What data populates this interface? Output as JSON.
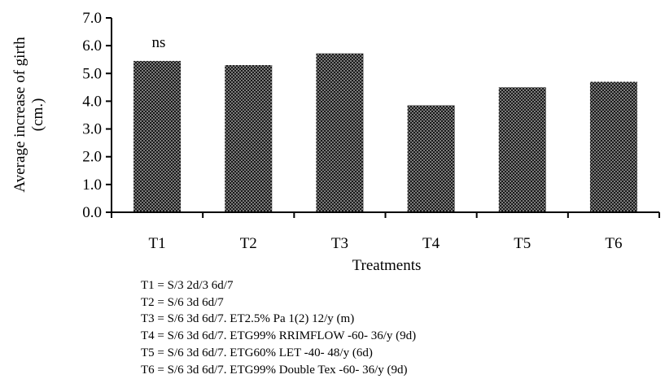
{
  "chart_data": {
    "type": "bar",
    "categories": [
      "T1",
      "T2",
      "T3",
      "T4",
      "T5",
      "T6"
    ],
    "values": [
      5.45,
      5.3,
      5.72,
      3.85,
      4.5,
      4.7
    ],
    "ylim": [
      0,
      7
    ],
    "yticks": [
      "0.0",
      "1.0",
      "2.0",
      "3.0",
      "4.0",
      "5.0",
      "6.0",
      "7.0"
    ],
    "ylabel_line1": "Average increase of girth",
    "ylabel_line2": "(cm.)",
    "xlabel": "Treatments",
    "annotation": "ns",
    "grid": false,
    "bar_fill": "dotted dark pattern",
    "colors": {
      "bar": "#1a1a1a",
      "dot": "#ffffff",
      "axis": "#000000"
    }
  },
  "legend": [
    "T1 = S/3 2d/3 6d/7",
    "T2 = S/6 3d 6d/7",
    "T3 = S/6 3d 6d/7. ET2.5% Pa 1(2) 12/y (m)",
    "T4 = S/6 3d 6d/7. ETG99% RRIMFLOW -60- 36/y (9d)",
    "T5 = S/6 3d 6d/7. ETG60% LET -40- 48/y (6d)",
    "T6 = S/6 3d 6d/7. ETG99% Double Tex -60- 36/y (9d)"
  ]
}
